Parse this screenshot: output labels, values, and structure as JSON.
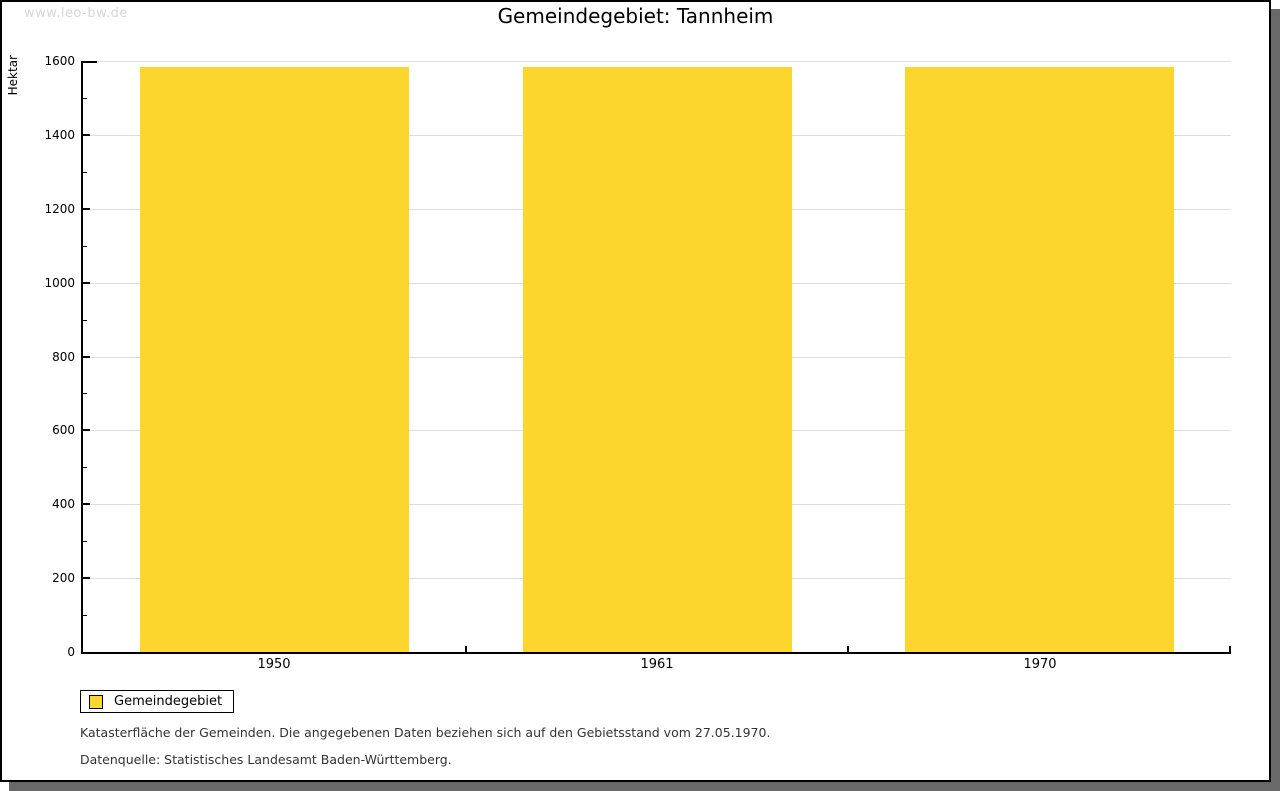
{
  "watermark": "www.leo-bw.de",
  "title": "Gemeindegebiet: Tannheim",
  "legend": {
    "label": "Gemeindegebiet"
  },
  "footnotes": [
    "Katasterfläche der Gemeinden. Die angegebenen Daten beziehen sich auf den Gebietsstand vom 27.05.1970.",
    "Datenquelle: Statistisches Landesamt Baden-Württemberg."
  ],
  "colors": {
    "bar": "#FCD52D",
    "grid": "#DDDDDD",
    "axis": "#000000",
    "watermark": "#D7D7D7",
    "shadow": "#696969"
  },
  "chart_data": {
    "type": "bar",
    "title": "Gemeindegebiet: Tannheim",
    "categories": [
      "1950",
      "1961",
      "1970"
    ],
    "series": [
      {
        "name": "Gemeindegebiet",
        "values": [
          1584,
          1584,
          1584
        ]
      }
    ],
    "xlabel": "",
    "ylabel": "Hektar",
    "ylim": [
      0,
      1600
    ],
    "ytick_step": 200,
    "minor_ytick_step": 100,
    "grid": true,
    "legend_position": "bottom-left"
  }
}
